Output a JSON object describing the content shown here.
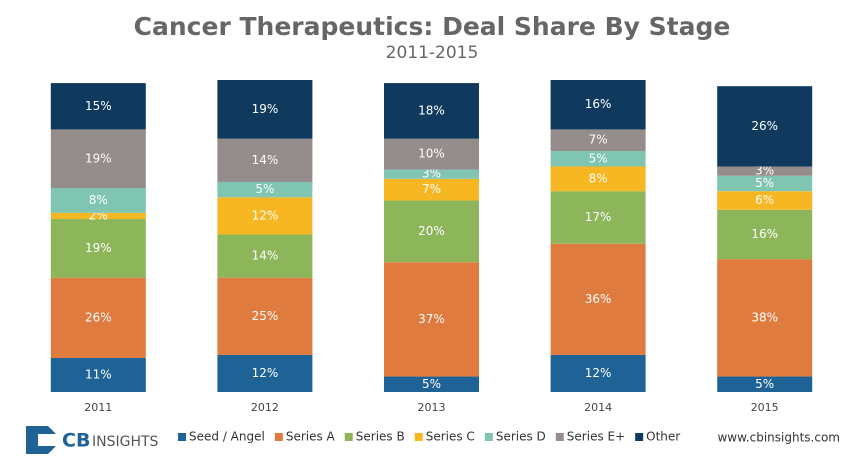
{
  "chart_data": {
    "type": "stacked_bar",
    "title": "Cancer Therapeutics: Deal Share By Stage",
    "subtitle": "2011-2015",
    "categories": [
      "2011",
      "2012",
      "2013",
      "2014",
      "2015"
    ],
    "series": [
      {
        "name": "Seed / Angel",
        "color": "#1f6296",
        "values": [
          11,
          12,
          5,
          12,
          5
        ],
        "value_labels": [
          "11%",
          "12%",
          "5%",
          "12%",
          "5%"
        ]
      },
      {
        "name": "Series A",
        "color": "#e07b3f",
        "values": [
          26,
          25,
          37,
          36,
          38
        ],
        "value_labels": [
          "26%",
          "25%",
          "37%",
          "36%",
          "38%"
        ]
      },
      {
        "name": "Series B",
        "color": "#8db55a",
        "values": [
          19,
          14,
          20,
          17,
          16
        ],
        "value_labels": [
          "19%",
          "14%",
          "20%",
          "17%",
          "16%"
        ]
      },
      {
        "name": "Series C",
        "color": "#f7b723",
        "values": [
          2,
          12,
          7,
          8,
          6
        ],
        "value_labels": [
          "2%",
          "12%",
          "7%",
          "8%",
          "6%"
        ]
      },
      {
        "name": "Series D",
        "color": "#7fc5b2",
        "values": [
          8,
          5,
          3,
          5,
          5
        ],
        "value_labels": [
          "8%",
          "5%",
          "3%",
          "5%",
          "5%"
        ]
      },
      {
        "name": "Series E+",
        "color": "#958c8c",
        "values": [
          19,
          14,
          10,
          7,
          3
        ],
        "value_labels": [
          "19%",
          "14%",
          "10%",
          "7%",
          "3%"
        ]
      },
      {
        "name": "Other",
        "color": "#0f3a5e",
        "values": [
          15,
          19,
          18,
          16,
          26
        ],
        "value_labels": [
          "15%",
          "19%",
          "18%",
          "16%",
          "26%"
        ]
      }
    ],
    "ylim": [
      0,
      101
    ],
    "logo": [
      "CB",
      "INSIGHTS"
    ],
    "source": "www.cbinsights.com"
  }
}
